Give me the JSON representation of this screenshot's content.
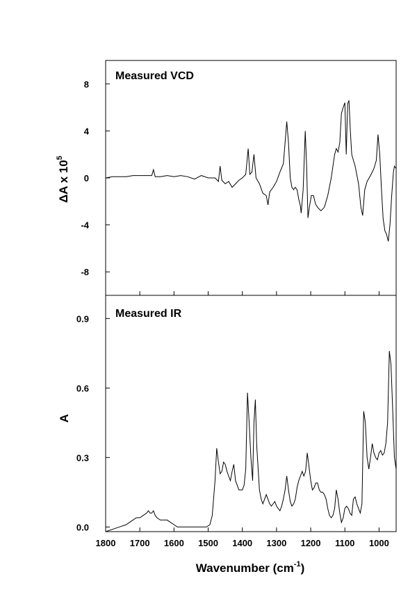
{
  "chart_data": [
    {
      "type": "line",
      "title": "Measured VCD",
      "ylabel": "ΔA x 10",
      "ylabel_exp": "5",
      "xlim": [
        1800,
        950
      ],
      "ylim": [
        -10,
        10
      ],
      "yticks": [
        "8",
        "4",
        "0",
        "-4",
        "-8"
      ],
      "ytick_values": [
        8,
        4,
        0,
        -4,
        -8
      ],
      "series": [
        {
          "x": [
            1800,
            1780,
            1760,
            1740,
            1720,
            1700,
            1680,
            1665,
            1660,
            1655,
            1640,
            1620,
            1600,
            1580,
            1560,
            1540,
            1520,
            1500,
            1480,
            1470,
            1465,
            1460,
            1450,
            1440,
            1430,
            1420,
            1410,
            1400,
            1390,
            1383,
            1378,
            1372,
            1366,
            1360,
            1350,
            1340,
            1330,
            1325,
            1320,
            1310,
            1300,
            1290,
            1280,
            1275,
            1270,
            1265,
            1260,
            1255,
            1250,
            1245,
            1240,
            1235,
            1230,
            1228,
            1222,
            1216,
            1212,
            1208,
            1204,
            1198,
            1192,
            1186,
            1180,
            1170,
            1160,
            1150,
            1140,
            1130,
            1125,
            1120,
            1115,
            1110,
            1105,
            1100,
            1096,
            1092,
            1088,
            1084,
            1080,
            1075,
            1070,
            1060,
            1053,
            1048,
            1042,
            1035,
            1025,
            1015,
            1008,
            1003,
            998,
            993,
            988,
            983,
            978,
            973,
            968,
            963,
            958,
            955,
            950
          ],
          "y": [
            0,
            0.1,
            0.1,
            0.1,
            0.2,
            0.2,
            0.2,
            0.2,
            0.7,
            0.1,
            0.1,
            0.2,
            0.1,
            0.2,
            0.1,
            -0.1,
            0.2,
            0,
            0,
            -0.3,
            1,
            -0.2,
            -0.5,
            -0.3,
            -0.8,
            -0.5,
            -0.2,
            0,
            0.3,
            2.5,
            0.3,
            0.5,
            2,
            0,
            -0.5,
            -1.3,
            -1.5,
            -2.3,
            -1.2,
            -0.8,
            -0.3,
            0.5,
            1.2,
            3,
            4.8,
            3,
            0,
            -0.8,
            -1,
            -0.8,
            -1,
            -1.8,
            -2.4,
            -3,
            -1,
            4,
            1,
            -3.4,
            -2.5,
            -1.5,
            -1.5,
            -2.2,
            -2.5,
            -2.8,
            -2.5,
            -1.5,
            0,
            2,
            2.5,
            2.2,
            3,
            5.5,
            6,
            6.4,
            2,
            6.3,
            6.6,
            4,
            2,
            1.5,
            1,
            -0.5,
            -2.5,
            -3.2,
            -1,
            -0.3,
            0.2,
            0.8,
            1.5,
            3.7,
            2,
            -1,
            -3.5,
            -4.5,
            -4.8,
            -5.4,
            -4,
            -1.5,
            0.5,
            1,
            0.8
          ]
        }
      ]
    },
    {
      "type": "line",
      "title": "Measured IR",
      "xlabel": "Wavenumber (cm",
      "xlabel_exp": "-1",
      "xlabel_suffix": ")",
      "ylabel": "A",
      "xlim": [
        1800,
        950
      ],
      "ylim": [
        -0.02,
        1.0
      ],
      "xticks": [
        "1800",
        "1700",
        "1600",
        "1500",
        "1400",
        "1300",
        "1200",
        "1100",
        "1000"
      ],
      "xtick_values": [
        1800,
        1700,
        1600,
        1500,
        1400,
        1300,
        1200,
        1100,
        1000
      ],
      "yticks": [
        "0.9",
        "0.6",
        "0.3",
        "0.0"
      ],
      "ytick_values": [
        0.9,
        0.6,
        0.3,
        0.0
      ],
      "series": [
        {
          "x": [
            1800,
            1780,
            1760,
            1740,
            1730,
            1720,
            1710,
            1700,
            1690,
            1680,
            1675,
            1670,
            1665,
            1660,
            1655,
            1650,
            1640,
            1630,
            1620,
            1610,
            1600,
            1590,
            1580,
            1570,
            1560,
            1540,
            1520,
            1505,
            1495,
            1488,
            1480,
            1475,
            1470,
            1465,
            1460,
            1455,
            1450,
            1445,
            1440,
            1435,
            1430,
            1425,
            1420,
            1410,
            1400,
            1395,
            1390,
            1385,
            1380,
            1375,
            1370,
            1366,
            1362,
            1358,
            1350,
            1345,
            1340,
            1335,
            1330,
            1325,
            1320,
            1315,
            1310,
            1305,
            1300,
            1295,
            1290,
            1285,
            1280,
            1275,
            1270,
            1265,
            1260,
            1255,
            1250,
            1245,
            1240,
            1235,
            1230,
            1225,
            1220,
            1215,
            1210,
            1205,
            1200,
            1195,
            1190,
            1185,
            1180,
            1175,
            1170,
            1165,
            1160,
            1155,
            1150,
            1145,
            1140,
            1135,
            1130,
            1125,
            1120,
            1115,
            1110,
            1105,
            1100,
            1095,
            1090,
            1085,
            1080,
            1075,
            1070,
            1065,
            1060,
            1055,
            1050,
            1045,
            1040,
            1035,
            1030,
            1025,
            1020,
            1015,
            1010,
            1005,
            1000,
            995,
            990,
            985,
            980,
            975,
            970,
            965,
            960,
            955,
            950
          ],
          "y": [
            -0.02,
            -0.01,
            0,
            0.01,
            0.02,
            0.03,
            0.04,
            0.04,
            0.05,
            0.06,
            0.07,
            0.06,
            0.06,
            0.07,
            0.05,
            0.04,
            0.03,
            0.03,
            0.03,
            0.02,
            0.01,
            0,
            0,
            0,
            0,
            0,
            0,
            0,
            0.01,
            0.05,
            0.2,
            0.34,
            0.28,
            0.23,
            0.24,
            0.28,
            0.27,
            0.24,
            0.22,
            0.2,
            0.24,
            0.27,
            0.2,
            0.16,
            0.16,
            0.18,
            0.25,
            0.58,
            0.45,
            0.3,
            0.2,
            0.45,
            0.55,
            0.35,
            0.16,
            0.12,
            0.1,
            0.12,
            0.14,
            0.12,
            0.1,
            0.09,
            0.1,
            0.11,
            0.09,
            0.08,
            0.07,
            0.09,
            0.12,
            0.16,
            0.22,
            0.16,
            0.11,
            0.09,
            0.1,
            0.12,
            0.17,
            0.2,
            0.22,
            0.24,
            0.22,
            0.24,
            0.32,
            0.26,
            0.2,
            0.16,
            0.17,
            0.19,
            0.19,
            0.16,
            0.15,
            0.15,
            0.14,
            0.12,
            0.08,
            0.05,
            0.04,
            0.05,
            0.08,
            0.16,
            0.12,
            0.06,
            0.02,
            0.04,
            0.08,
            0.09,
            0.08,
            0.06,
            0.05,
            0.12,
            0.13,
            0.1,
            0.08,
            0.06,
            0.1,
            0.5,
            0.45,
            0.3,
            0.25,
            0.3,
            0.36,
            0.32,
            0.3,
            0.29,
            0.32,
            0.33,
            0.31,
            0.32,
            0.36,
            0.45,
            0.76,
            0.7,
            0.5,
            0.3,
            0.25
          ]
        }
      ]
    }
  ]
}
